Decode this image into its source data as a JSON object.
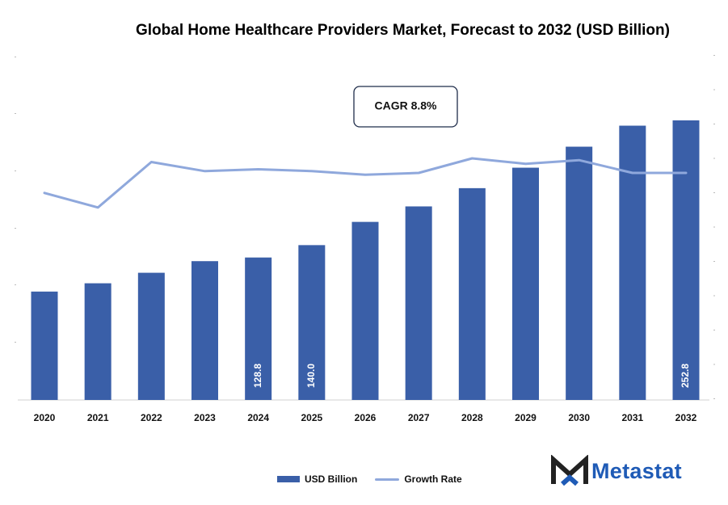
{
  "chart_data": {
    "type": "bar",
    "title": "Global Home Healthcare Providers Market, Forecast to 2032 (USD Billion)",
    "categories": [
      "2020",
      "2021",
      "2022",
      "2023",
      "2024",
      "2025",
      "2026",
      "2027",
      "2028",
      "2029",
      "2030",
      "2031",
      "2032"
    ],
    "series": [
      {
        "name": "USD Billion",
        "type": "bar",
        "color": "#3a5fa8",
        "values": [
          98.0,
          105.5,
          115.0,
          125.5,
          128.8,
          140.0,
          161.0,
          175.0,
          191.5,
          210.0,
          229.0,
          248.0,
          252.8
        ]
      },
      {
        "name": "Growth Rate",
        "type": "line",
        "color": "#8fa8dc",
        "values": [
          8.5,
          7.7,
          10.2,
          9.7,
          9.8,
          9.7,
          9.5,
          9.6,
          10.4,
          10.1,
          10.3,
          9.6,
          9.6
        ]
      }
    ],
    "data_labels": {
      "2024": "128.8",
      "2025": "140.0",
      "2032": "252.8"
    },
    "annotation": "CAGR 8.8%",
    "ylim_bars": [
      0,
      263
    ],
    "ylim_line": [
      0,
      15
    ],
    "grid": false,
    "legend_position": "bottom"
  },
  "legend": {
    "bar_label": "USD Billion",
    "line_label": "Growth Rate"
  },
  "brand": {
    "name": "Metastat",
    "logo_icon": "metastat-m-icon"
  }
}
